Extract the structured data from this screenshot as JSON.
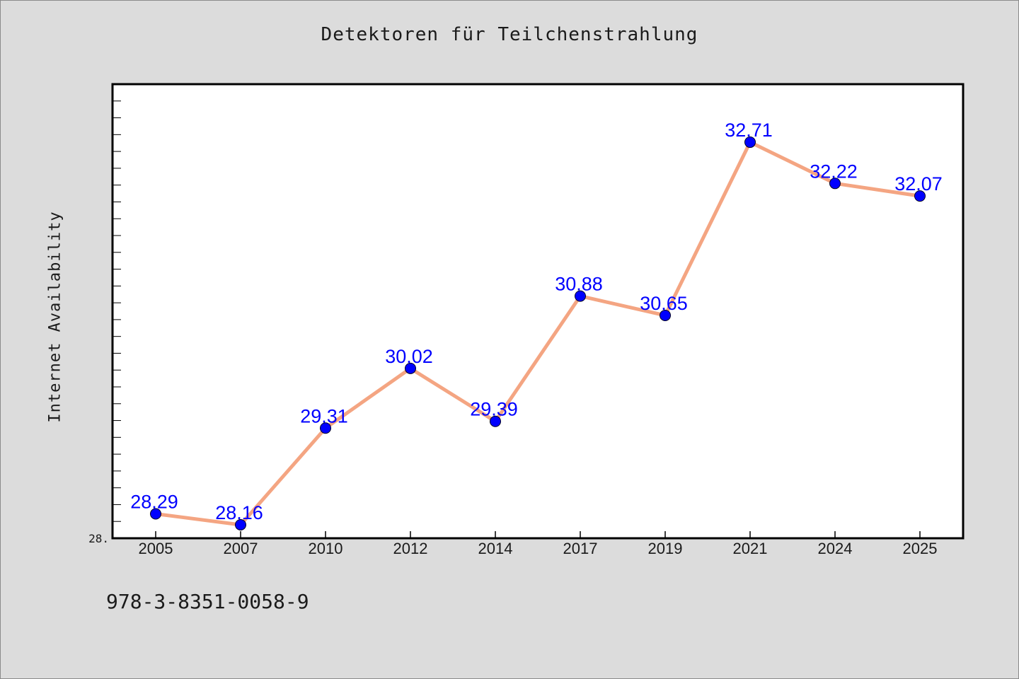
{
  "chart_data": {
    "type": "line",
    "title": "Detektoren für Teilchenstrahlung",
    "xlabel": "",
    "ylabel": "Internet Availability",
    "categories": [
      "2005",
      "2007",
      "2010",
      "2012",
      "2014",
      "2017",
      "2019",
      "2021",
      "2024",
      "2025"
    ],
    "series": [
      {
        "values": [
          28.29,
          28.16,
          29.31,
          30.02,
          29.39,
          30.88,
          30.65,
          32.71,
          32.22,
          32.07
        ]
      }
    ],
    "data_labels": [
      "28.29",
      "28.16",
      "29.31",
      "30.02",
      "29.39",
      "30.88",
      "30.65",
      "32.71",
      "32.22",
      "32.07"
    ],
    "ylim": [
      28.0,
      33.4
    ],
    "y_tick_label": "28.",
    "grid": false,
    "legend": "none",
    "colors": {
      "line": "#f4a582",
      "marker": "#0000ff",
      "data_label": "#0000ff",
      "plot_background": "#ffffff",
      "figure_background": "#dcdcdc"
    }
  },
  "footer": {
    "isbn": "978-3-8351-0058-9"
  }
}
